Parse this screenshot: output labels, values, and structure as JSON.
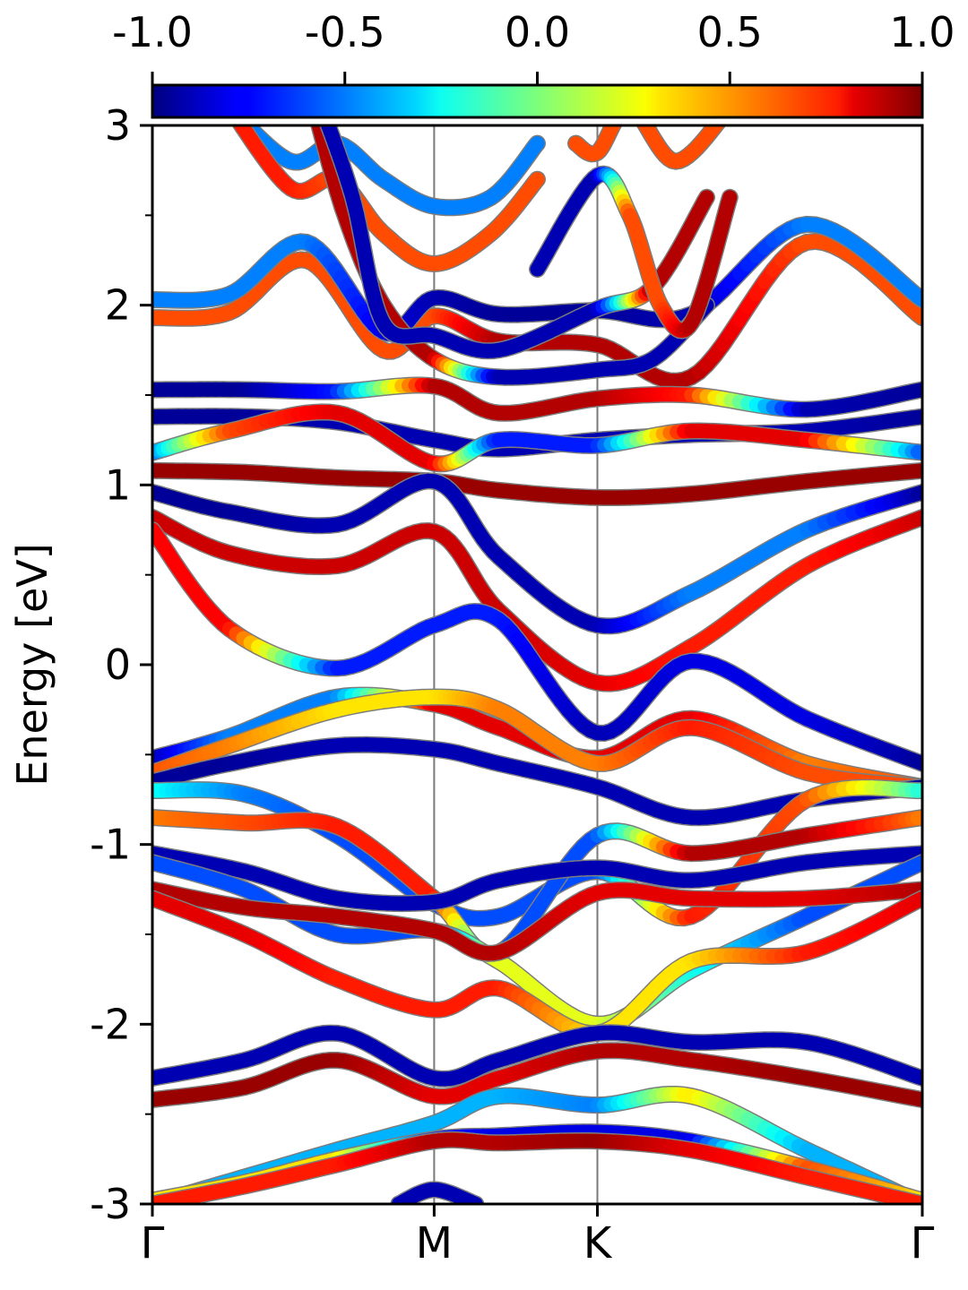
{
  "chart_data": {
    "type": "line",
    "title": "",
    "xlabel": "",
    "ylabel": "Energy [eV]",
    "ylim": [
      -3,
      3
    ],
    "y_ticks": [
      -3,
      -2,
      -1,
      0,
      1,
      2,
      3
    ],
    "y_tick_labels": [
      "-3",
      "-2",
      "-1",
      "0",
      "1",
      "2",
      "3"
    ],
    "k_points": [
      {
        "label": "Γ",
        "pos": 0.0
      },
      {
        "label": "M",
        "pos": 0.366
      },
      {
        "label": "K",
        "pos": 0.578
      },
      {
        "label": "Γ",
        "pos": 1.0
      }
    ],
    "colorbar": {
      "min": -1.0,
      "max": 1.0,
      "colormap": "jet",
      "ticks": [
        -1.0,
        -0.5,
        0.0,
        0.5,
        1.0
      ],
      "tick_labels": [
        "-1.0",
        "-0.5",
        "0.0",
        "0.5",
        "1.0"
      ]
    },
    "series": [
      {
        "x": [
          0,
          0.1,
          0.2,
          0.3,
          0.366,
          0.45,
          0.578,
          0.7,
          0.85,
          1.0
        ],
        "y": [
          1.93,
          1.96,
          2.25,
          1.75,
          1.94,
          1.8,
          1.78,
          1.6,
          2.35,
          1.93
        ],
        "c": [
          0.6,
          0.6,
          0.6,
          0.6,
          0.6,
          0.9,
          0.9,
          0.9,
          0.6,
          0.6
        ]
      },
      {
        "x": [
          0,
          0.1,
          0.2,
          0.3,
          0.366,
          0.45,
          0.578,
          0.7,
          0.85,
          1.0
        ],
        "y": [
          2.03,
          2.06,
          2.35,
          1.85,
          2.04,
          1.95,
          1.97,
          1.95,
          2.45,
          2.03
        ],
        "c": [
          -0.5,
          -0.5,
          -0.5,
          -0.8,
          -0.9,
          -0.95,
          -0.95,
          -0.9,
          -0.5,
          -0.5
        ]
      },
      {
        "x": [
          0,
          0.12,
          0.24,
          0.366,
          0.45,
          0.578,
          0.7,
          0.85,
          1.0
        ],
        "y": [
          1.53,
          1.53,
          1.52,
          1.55,
          1.4,
          1.48,
          1.5,
          1.42,
          1.53
        ],
        "c": [
          -0.95,
          -0.95,
          -0.7,
          0.9,
          0.9,
          0.9,
          0.7,
          -0.9,
          -0.95
        ]
      },
      {
        "x": [
          0,
          0.12,
          0.24,
          0.366,
          0.45,
          0.578,
          0.7,
          0.85,
          1.0
        ],
        "y": [
          1.38,
          1.38,
          1.35,
          1.25,
          1.2,
          1.25,
          1.28,
          1.3,
          1.38
        ],
        "c": [
          -0.95,
          -0.95,
          -0.9,
          -0.9,
          -0.9,
          -0.9,
          -0.9,
          -0.9,
          -0.95
        ]
      },
      {
        "x": [
          0,
          0.1,
          0.24,
          0.366,
          0.45,
          0.578,
          0.7,
          0.85,
          1.0
        ],
        "y": [
          1.18,
          1.3,
          1.4,
          1.12,
          1.25,
          1.22,
          1.3,
          1.25,
          1.18
        ],
        "c": [
          -0.6,
          0.6,
          0.8,
          0.8,
          -0.7,
          -0.7,
          0.8,
          0.8,
          -0.6
        ]
      },
      {
        "x": [
          0,
          0.12,
          0.24,
          0.366,
          0.45,
          0.578,
          0.7,
          0.85,
          1.0
        ],
        "y": [
          1.08,
          1.07,
          1.04,
          1.02,
          0.97,
          0.93,
          0.95,
          1.02,
          1.08
        ],
        "c": [
          0.95,
          0.95,
          0.95,
          0.95,
          0.95,
          0.95,
          0.95,
          0.95,
          0.95
        ]
      },
      {
        "x": [
          0,
          0.1,
          0.24,
          0.366,
          0.45,
          0.578,
          0.7,
          0.85,
          1.0
        ],
        "y": [
          0.96,
          0.85,
          0.78,
          1.02,
          0.6,
          0.22,
          0.4,
          0.75,
          0.96
        ],
        "c": [
          -0.95,
          -0.95,
          -0.9,
          -0.9,
          -0.9,
          -0.9,
          -0.5,
          -0.5,
          -0.95
        ]
      },
      {
        "x": [
          0,
          0.1,
          0.24,
          0.366,
          0.45,
          0.578,
          0.7,
          0.85,
          1.0
        ],
        "y": [
          0.82,
          0.62,
          0.55,
          0.74,
          0.3,
          -0.1,
          0.1,
          0.55,
          0.82
        ],
        "c": [
          0.85,
          0.85,
          0.85,
          0.85,
          0.85,
          0.8,
          0.7,
          0.7,
          0.85
        ]
      },
      {
        "x": [
          0,
          0.1,
          0.24,
          0.366,
          0.45,
          0.578,
          0.7,
          0.85,
          1.0
        ],
        "y": [
          0.75,
          0.2,
          -0.02,
          0.22,
          0.25,
          -0.38,
          0.02,
          -0.3,
          -0.55
        ],
        "c": [
          0.75,
          0.75,
          -0.7,
          -0.7,
          -0.7,
          -0.9,
          -0.8,
          -0.8,
          -0.95
        ]
      },
      {
        "x": [
          0,
          0.1,
          0.24,
          0.366,
          0.45,
          0.578,
          0.7,
          0.85,
          1.0
        ],
        "y": [
          -0.52,
          -0.4,
          -0.18,
          -0.22,
          -0.35,
          -0.52,
          -0.3,
          -0.55,
          -0.68
        ],
        "c": [
          -0.95,
          -0.5,
          -0.5,
          0.8,
          0.8,
          0.8,
          0.8,
          0.5,
          0.6
        ]
      },
      {
        "x": [
          0,
          0.1,
          0.24,
          0.366,
          0.45,
          0.578,
          0.7,
          0.85,
          1.0
        ],
        "y": [
          -0.6,
          -0.45,
          -0.25,
          -0.18,
          -0.25,
          -0.55,
          -0.35,
          -0.6,
          -0.68
        ],
        "c": [
          0.6,
          0.5,
          0.3,
          0.3,
          0.5,
          0.5,
          0.7,
          0.6,
          0.6
        ]
      },
      {
        "x": [
          0,
          0.1,
          0.24,
          0.366,
          0.45,
          0.578,
          0.7,
          0.85,
          1.0
        ],
        "y": [
          -0.65,
          -0.55,
          -0.45,
          -0.47,
          -0.55,
          -0.68,
          -0.85,
          -0.75,
          -0.68
        ],
        "c": [
          -0.95,
          -0.95,
          -0.9,
          -0.9,
          -0.9,
          -0.9,
          -0.9,
          -0.9,
          -0.95
        ]
      },
      {
        "x": [
          0,
          0.12,
          0.24,
          0.366,
          0.45,
          0.578,
          0.7,
          0.85,
          1.0
        ],
        "y": [
          -0.7,
          -0.72,
          -0.95,
          -1.33,
          -1.4,
          -1.15,
          -1.4,
          -0.75,
          -0.7
        ],
        "c": [
          -0.2,
          -0.5,
          -0.6,
          -0.6,
          -0.6,
          -0.6,
          0.7,
          0.6,
          -0.2
        ]
      },
      {
        "x": [
          0,
          0.12,
          0.24,
          0.366,
          0.45,
          0.578,
          0.7,
          0.85,
          1.0
        ],
        "y": [
          -0.85,
          -0.88,
          -0.9,
          -1.3,
          -1.6,
          -0.95,
          -1.05,
          -0.95,
          -0.85
        ],
        "c": [
          0.5,
          0.6,
          0.7,
          0.7,
          -0.6,
          -0.6,
          0.9,
          0.9,
          0.5
        ]
      },
      {
        "x": [
          0,
          0.12,
          0.24,
          0.366,
          0.45,
          0.578,
          0.7,
          0.85,
          1.0
        ],
        "y": [
          -1.05,
          -1.15,
          -1.3,
          -1.32,
          -1.2,
          -1.13,
          -1.2,
          -1.1,
          -1.05
        ],
        "c": [
          -0.9,
          -0.9,
          -0.9,
          -0.9,
          -0.9,
          -0.9,
          -0.9,
          -0.9,
          -0.9
        ]
      },
      {
        "x": [
          0,
          0.12,
          0.24,
          0.366,
          0.45,
          0.578,
          0.7,
          0.85,
          1.0
        ],
        "y": [
          -1.1,
          -1.25,
          -1.5,
          -1.48,
          -1.65,
          -2.0,
          -1.7,
          -1.4,
          -1.1
        ],
        "c": [
          -0.6,
          -0.6,
          -0.6,
          -0.6,
          0.2,
          0.2,
          -0.2,
          -0.6,
          -0.6
        ]
      },
      {
        "x": [
          0,
          0.12,
          0.24,
          0.366,
          0.45,
          0.578,
          0.7,
          0.85,
          1.0
        ],
        "y": [
          -1.25,
          -1.35,
          -1.4,
          -1.48,
          -1.6,
          -1.27,
          -1.3,
          -1.3,
          -1.25
        ],
        "c": [
          0.9,
          0.9,
          0.9,
          0.9,
          0.9,
          0.8,
          0.8,
          0.8,
          0.9
        ]
      },
      {
        "x": [
          0,
          0.12,
          0.24,
          0.366,
          0.45,
          0.578,
          0.7,
          0.85,
          1.0
        ],
        "y": [
          -1.3,
          -1.5,
          -1.75,
          -1.92,
          -1.8,
          -2.05,
          -1.65,
          -1.6,
          -1.3
        ],
        "c": [
          0.8,
          0.8,
          0.7,
          0.7,
          0.7,
          0.3,
          0.3,
          0.7,
          0.8
        ]
      },
      {
        "x": [
          0,
          0.12,
          0.24,
          0.366,
          0.45,
          0.578,
          0.7,
          0.85,
          1.0
        ],
        "y": [
          -2.3,
          -2.2,
          -2.05,
          -2.3,
          -2.2,
          -2.05,
          -2.1,
          -2.1,
          -2.3
        ],
        "c": [
          -0.9,
          -0.9,
          -0.9,
          -0.9,
          -0.9,
          -0.9,
          -0.9,
          -0.9,
          -0.9
        ]
      },
      {
        "x": [
          0,
          0.12,
          0.24,
          0.366,
          0.45,
          0.578,
          0.7,
          0.85,
          1.0
        ],
        "y": [
          -2.42,
          -2.35,
          -2.2,
          -2.4,
          -2.3,
          -2.15,
          -2.2,
          -2.3,
          -2.42
        ],
        "c": [
          0.95,
          0.95,
          0.95,
          0.8,
          0.8,
          0.9,
          0.9,
          0.95,
          0.95
        ]
      },
      {
        "x": [
          0,
          0.12,
          0.24,
          0.366,
          0.45,
          0.578,
          0.7,
          0.85,
          1.0
        ],
        "y": [
          -3.0,
          -2.85,
          -2.7,
          -2.55,
          -2.4,
          -2.45,
          -2.4,
          -2.7,
          -3.0
        ],
        "c": [
          -0.4,
          -0.4,
          -0.4,
          -0.4,
          -0.4,
          -0.5,
          0.3,
          -0.4,
          -0.4
        ]
      },
      {
        "x": [
          0,
          0.12,
          0.24,
          0.366,
          0.45,
          0.578,
          0.7,
          0.85,
          1.0
        ],
        "y": [
          -2.98,
          -2.88,
          -2.75,
          -2.64,
          -2.62,
          -2.6,
          -2.65,
          -2.8,
          -2.98
        ],
        "c": [
          0.3,
          0.3,
          0.3,
          -0.7,
          -0.8,
          -0.8,
          -0.8,
          0.6,
          0.3
        ]
      },
      {
        "x": [
          0,
          0.12,
          0.24,
          0.366,
          0.45,
          0.578,
          0.7,
          0.85,
          1.0
        ],
        "y": [
          -3.0,
          -2.9,
          -2.78,
          -2.65,
          -2.66,
          -2.65,
          -2.7,
          -2.85,
          -3.0
        ],
        "c": [
          0.7,
          0.7,
          0.7,
          0.9,
          0.9,
          0.95,
          0.8,
          0.7,
          0.7
        ]
      },
      {
        "x": [
          0.1,
          0.18,
          0.24,
          0.3,
          0.366,
          0.44,
          0.5
        ],
        "y": [
          3.1,
          2.8,
          2.9,
          2.7,
          2.55,
          2.6,
          2.9
        ],
        "c": [
          -0.5,
          -0.5,
          -0.5,
          -0.5,
          -0.5,
          -0.5,
          -0.5
        ]
      },
      {
        "x": [
          0.1,
          0.18,
          0.24,
          0.3,
          0.366,
          0.44,
          0.5
        ],
        "y": [
          3.1,
          2.65,
          2.7,
          2.4,
          2.23,
          2.4,
          2.7
        ],
        "c": [
          0.7,
          0.7,
          0.6,
          0.6,
          0.6,
          0.6,
          0.6
        ]
      },
      {
        "x": [
          0.21,
          0.25,
          0.3,
          0.366,
          0.45,
          0.578,
          0.65,
          0.72
        ],
        "y": [
          3.1,
          2.5,
          2.0,
          1.7,
          1.6,
          1.64,
          1.7,
          2.0
        ],
        "c": [
          0.9,
          0.9,
          0.9,
          0.9,
          -0.9,
          -0.9,
          -0.9,
          -0.9
        ]
      },
      {
        "x": [
          0.22,
          0.26,
          0.3,
          0.366,
          0.45,
          0.578,
          0.65,
          0.72
        ],
        "y": [
          3.1,
          2.6,
          1.9,
          1.83,
          1.75,
          1.98,
          2.1,
          2.6
        ],
        "c": [
          -0.9,
          -0.9,
          -0.9,
          -0.9,
          -0.9,
          -0.9,
          0.9,
          0.9
        ]
      },
      {
        "x": [
          0.5,
          0.578,
          0.62,
          0.66,
          0.7,
          0.75
        ],
        "y": [
          2.2,
          2.72,
          2.5,
          2.0,
          1.9,
          2.6
        ],
        "c": [
          -0.9,
          -0.9,
          0.6,
          0.6,
          0.9,
          0.9
        ]
      },
      {
        "x": [
          0.55,
          0.578,
          0.62,
          0.68,
          0.75
        ],
        "y": [
          2.9,
          2.85,
          3.1,
          2.8,
          3.1
        ],
        "c": [
          0.6,
          0.6,
          0.6,
          0.6,
          0.6
        ]
      },
      {
        "x": [
          0.32,
          0.366,
          0.42
        ],
        "y": [
          -3.0,
          -2.92,
          -3.0
        ],
        "c": [
          -0.9,
          -0.9,
          -0.9
        ]
      }
    ]
  }
}
